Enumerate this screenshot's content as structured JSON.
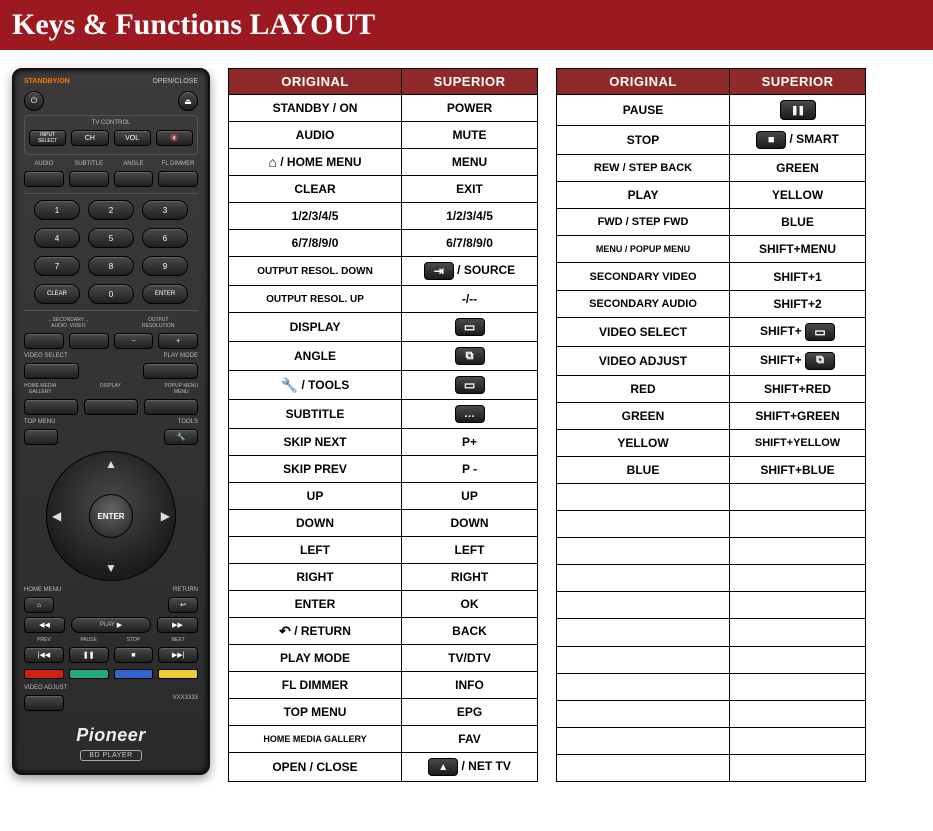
{
  "title": "Keys & Functions LAYOUT",
  "colors": {
    "title_bg": "#9c1a1f",
    "header_bg": "#902a2a",
    "border": "#000000",
    "text": "#000000",
    "header_text": "#ffffff"
  },
  "table_headers": {
    "original": "ORIGINAL",
    "superior": "SUPERIOR"
  },
  "remote": {
    "standby_label": "STANDBY/ON",
    "openclose_label": "OPEN/CLOSE",
    "tv_control_label": "TV CONTROL",
    "tv_buttons": [
      "INPUT SELECT",
      "CH",
      "VOL",
      "🔇"
    ],
    "label_row1": [
      "AUDIO",
      "SUBTITLE",
      "ANGLE",
      "FL DIMMER"
    ],
    "numpad": [
      "1",
      "2",
      "3",
      "4",
      "5",
      "6",
      "7",
      "8",
      "9",
      "CLEAR",
      "0",
      "ENTER"
    ],
    "label_row2": [
      "←SECONDARY→\nAUDIO    VIDEO",
      "OUTPUT\nRESOLUTION"
    ],
    "label_row3": [
      "VIDEO SELECT",
      "PLAY MODE"
    ],
    "label_row4": [
      "HOME MEDIA\nGALLERY",
      "DISPLAY",
      "POPUP MENU\nMENU"
    ],
    "label_row5": [
      "TOP MENU",
      "TOOLS"
    ],
    "enter_label": "ENTER",
    "corner_labels": [
      "HOME MENU",
      "RETURN"
    ],
    "transport_labels": [
      "PLAY"
    ],
    "transport_row": [
      "PREV",
      "PAUSE",
      "STOP",
      "NEXT"
    ],
    "video_adjust": "VIDEO ADJUST",
    "model": "VXX3333",
    "brand": "Pioneer",
    "bd_label": "BD PLAYER"
  },
  "table1": [
    {
      "o": "STANDBY / ON",
      "s_text": "POWER"
    },
    {
      "o": "AUDIO",
      "s_text": "MUTE"
    },
    {
      "o_icon": "home",
      "o_text": " / HOME MENU",
      "s_text": "MENU"
    },
    {
      "o": "CLEAR",
      "s_text": "EXIT"
    },
    {
      "o": "1/2/3/4/5",
      "s_text": "1/2/3/4/5"
    },
    {
      "o": "6/7/8/9/0",
      "s_text": "6/7/8/9/0"
    },
    {
      "o": "OUTPUT RESOL. DOWN",
      "o_small": true,
      "s_chip": "source",
      "s_after": " / SOURCE"
    },
    {
      "o": "OUTPUT RESOL. UP",
      "o_small": true,
      "s_text": "-/--"
    },
    {
      "o": "DISPLAY",
      "s_chip": "aspect"
    },
    {
      "o": "ANGLE",
      "s_chip": "zoom"
    },
    {
      "o_icon": "wrench",
      "o_text": " / TOOLS",
      "s_chip": "aspect"
    },
    {
      "o": "SUBTITLE",
      "s_chip": "cc"
    },
    {
      "o": "SKIP NEXT",
      "s_text": "P+"
    },
    {
      "o": "SKIP PREV",
      "s_text": "P -"
    },
    {
      "o": "UP",
      "s_text": "UP"
    },
    {
      "o": "DOWN",
      "s_text": "DOWN"
    },
    {
      "o": "LEFT",
      "s_text": "LEFT"
    },
    {
      "o": "RIGHT",
      "s_text": "RIGHT"
    },
    {
      "o": "ENTER",
      "s_text": "OK"
    },
    {
      "o_icon": "return",
      "o_text": " / RETURN",
      "s_text": "BACK"
    },
    {
      "o": "PLAY MODE",
      "s_text": "TV/DTV"
    },
    {
      "o": "FL DIMMER",
      "s_text": "INFO"
    },
    {
      "o": "TOP MENU",
      "s_text": "EPG"
    },
    {
      "o": "HOME MEDIA GALLERY",
      "o_xsmall": true,
      "s_text": "FAV"
    },
    {
      "o": "OPEN / CLOSE",
      "s_chip": "eject",
      "s_after": " / NET TV"
    }
  ],
  "table2": [
    {
      "o": "PAUSE",
      "s_chip": "pause",
      "s_chip_wide": true
    },
    {
      "o": "STOP",
      "s_chip": "stop",
      "s_after": " / SMART"
    },
    {
      "o": "REW / STEP BACK",
      "o_small11": true,
      "s_text": "GREEN"
    },
    {
      "o": "PLAY",
      "s_text": "YELLOW"
    },
    {
      "o": "FWD / STEP FWD",
      "o_small11": true,
      "s_text": "BLUE"
    },
    {
      "o": "MENU / POPUP MENU",
      "o_xsmall": true,
      "s_text": "SHIFT+MENU"
    },
    {
      "o": "SECONDARY VIDEO",
      "o_small11": true,
      "s_text": "SHIFT+1"
    },
    {
      "o": "SECONDARY AUDIO",
      "o_small11": true,
      "s_text": "SHIFT+2"
    },
    {
      "o": "VIDEO SELECT",
      "s_text": "SHIFT+ ",
      "s_chip_after": "aspect"
    },
    {
      "o": "VIDEO ADJUST",
      "s_text": "SHIFT+ ",
      "s_chip_after": "zoom"
    },
    {
      "o": "RED",
      "s_text": "SHIFT+RED"
    },
    {
      "o": "GREEN",
      "s_text": "SHIFT+GREEN"
    },
    {
      "o": "YELLOW",
      "s_text": "SHIFT+YELLOW",
      "s_small11": true
    },
    {
      "o": "BLUE",
      "s_text": "SHIFT+BLUE"
    },
    {
      "o": "",
      "s_text": ""
    },
    {
      "o": "",
      "s_text": ""
    },
    {
      "o": "",
      "s_text": ""
    },
    {
      "o": "",
      "s_text": ""
    },
    {
      "o": "",
      "s_text": ""
    },
    {
      "o": "",
      "s_text": ""
    },
    {
      "o": "",
      "s_text": ""
    },
    {
      "o": "",
      "s_text": ""
    },
    {
      "o": "",
      "s_text": ""
    },
    {
      "o": "",
      "s_text": ""
    },
    {
      "o": "",
      "s_text": ""
    }
  ]
}
